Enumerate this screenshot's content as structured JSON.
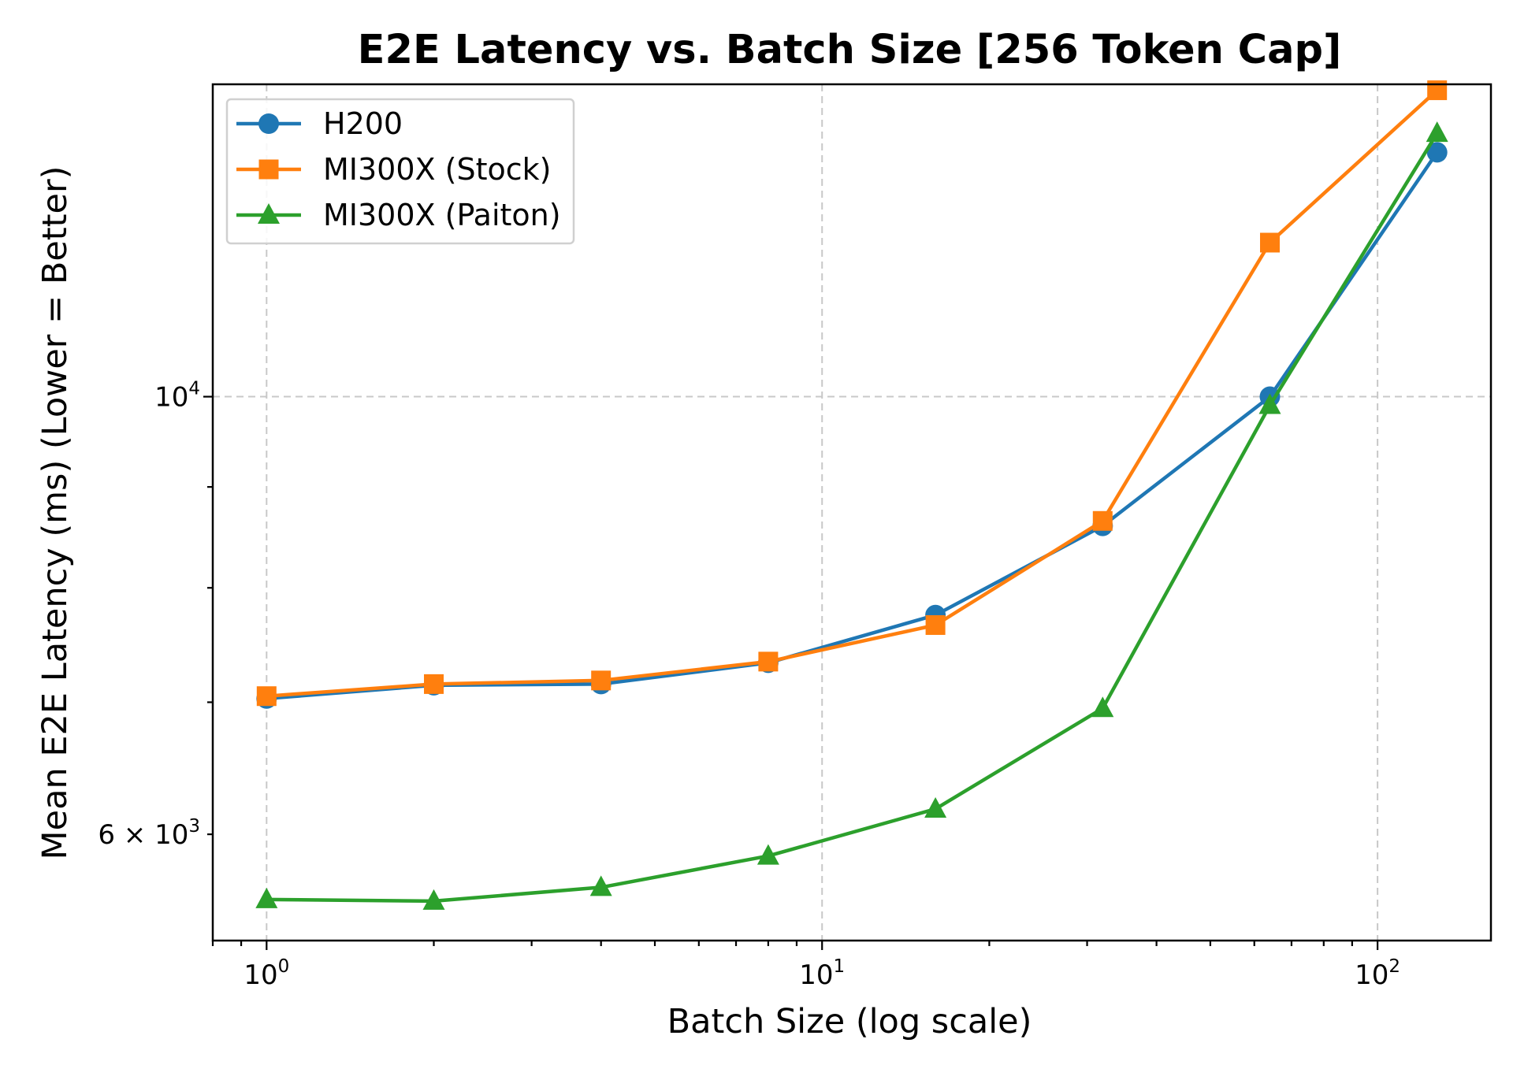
{
  "chart_data": {
    "type": "line",
    "title": "E2E Latency vs. Batch Size [256 Token Cap]",
    "xlabel": "Batch Size (log scale)",
    "ylabel": "Mean E2E Latency (ms) (Lower = Better)",
    "xscale": "log",
    "yscale": "log",
    "xlim": [
      0.8,
      160
    ],
    "ylim": [
      5300,
      14400
    ],
    "x": [
      1,
      2,
      4,
      8,
      16,
      32,
      64,
      128
    ],
    "xticks": [
      {
        "value": 1,
        "base": "10",
        "exp": "0"
      },
      {
        "value": 10,
        "base": "10",
        "exp": "1"
      },
      {
        "value": 100,
        "base": "10",
        "exp": "2"
      }
    ],
    "yticks": [
      {
        "value": 6000,
        "base": "6 × 10",
        "exp": "3"
      },
      {
        "value": 10000,
        "base": "10",
        "exp": "4"
      }
    ],
    "grid": true,
    "legend_position": "top-left",
    "series": [
      {
        "name": "H200",
        "color": "#1f77b4",
        "marker": "circle",
        "values": [
          7030,
          7140,
          7150,
          7330,
          7750,
          8600,
          10000,
          13300
        ]
      },
      {
        "name": "MI300X (Stock)",
        "color": "#ff7f0e",
        "marker": "square",
        "values": [
          7050,
          7150,
          7180,
          7340,
          7660,
          8650,
          11970,
          14300
        ]
      },
      {
        "name": "MI300X (Paiton)",
        "color": "#2ca02c",
        "marker": "triangle",
        "values": [
          5560,
          5550,
          5640,
          5850,
          6180,
          6950,
          9900,
          13600
        ]
      }
    ]
  }
}
